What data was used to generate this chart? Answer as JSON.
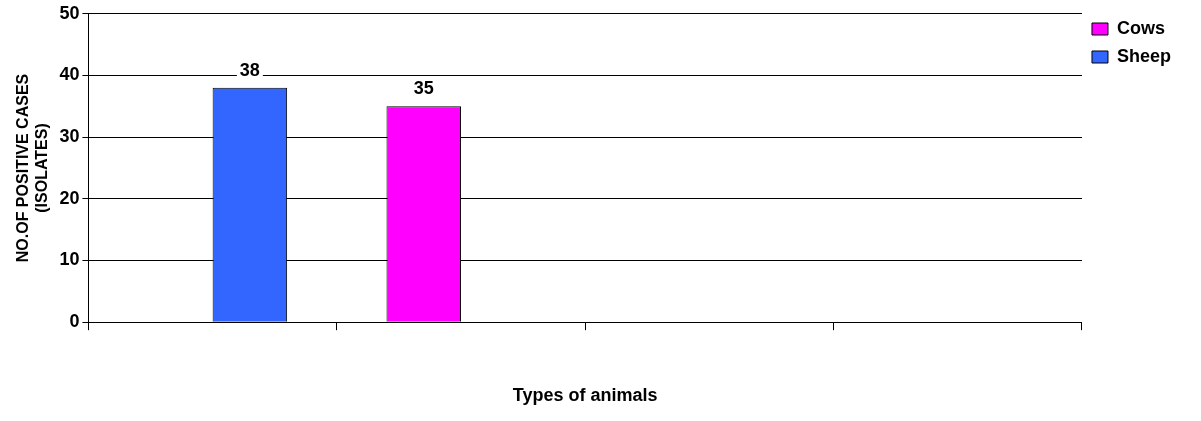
{
  "chart_data": {
    "type": "bar",
    "xlabel": "Types of animals",
    "ylabel": "NO.OF POSITIVE CASES\n(ISOLATES)",
    "categories": [
      null,
      null,
      null,
      null
    ],
    "series": [
      {
        "name": "Cows",
        "color": "#ff00ff",
        "values": [
          null,
          35,
          null,
          null
        ]
      },
      {
        "name": "Sheep",
        "color": "#3366ff",
        "values": [
          38,
          null,
          null,
          null
        ]
      }
    ],
    "ylim": [
      0,
      50
    ],
    "yticks": [
      0,
      10,
      20,
      30,
      40,
      50
    ],
    "grid": "y",
    "legend": "right",
    "data_labels": true
  }
}
